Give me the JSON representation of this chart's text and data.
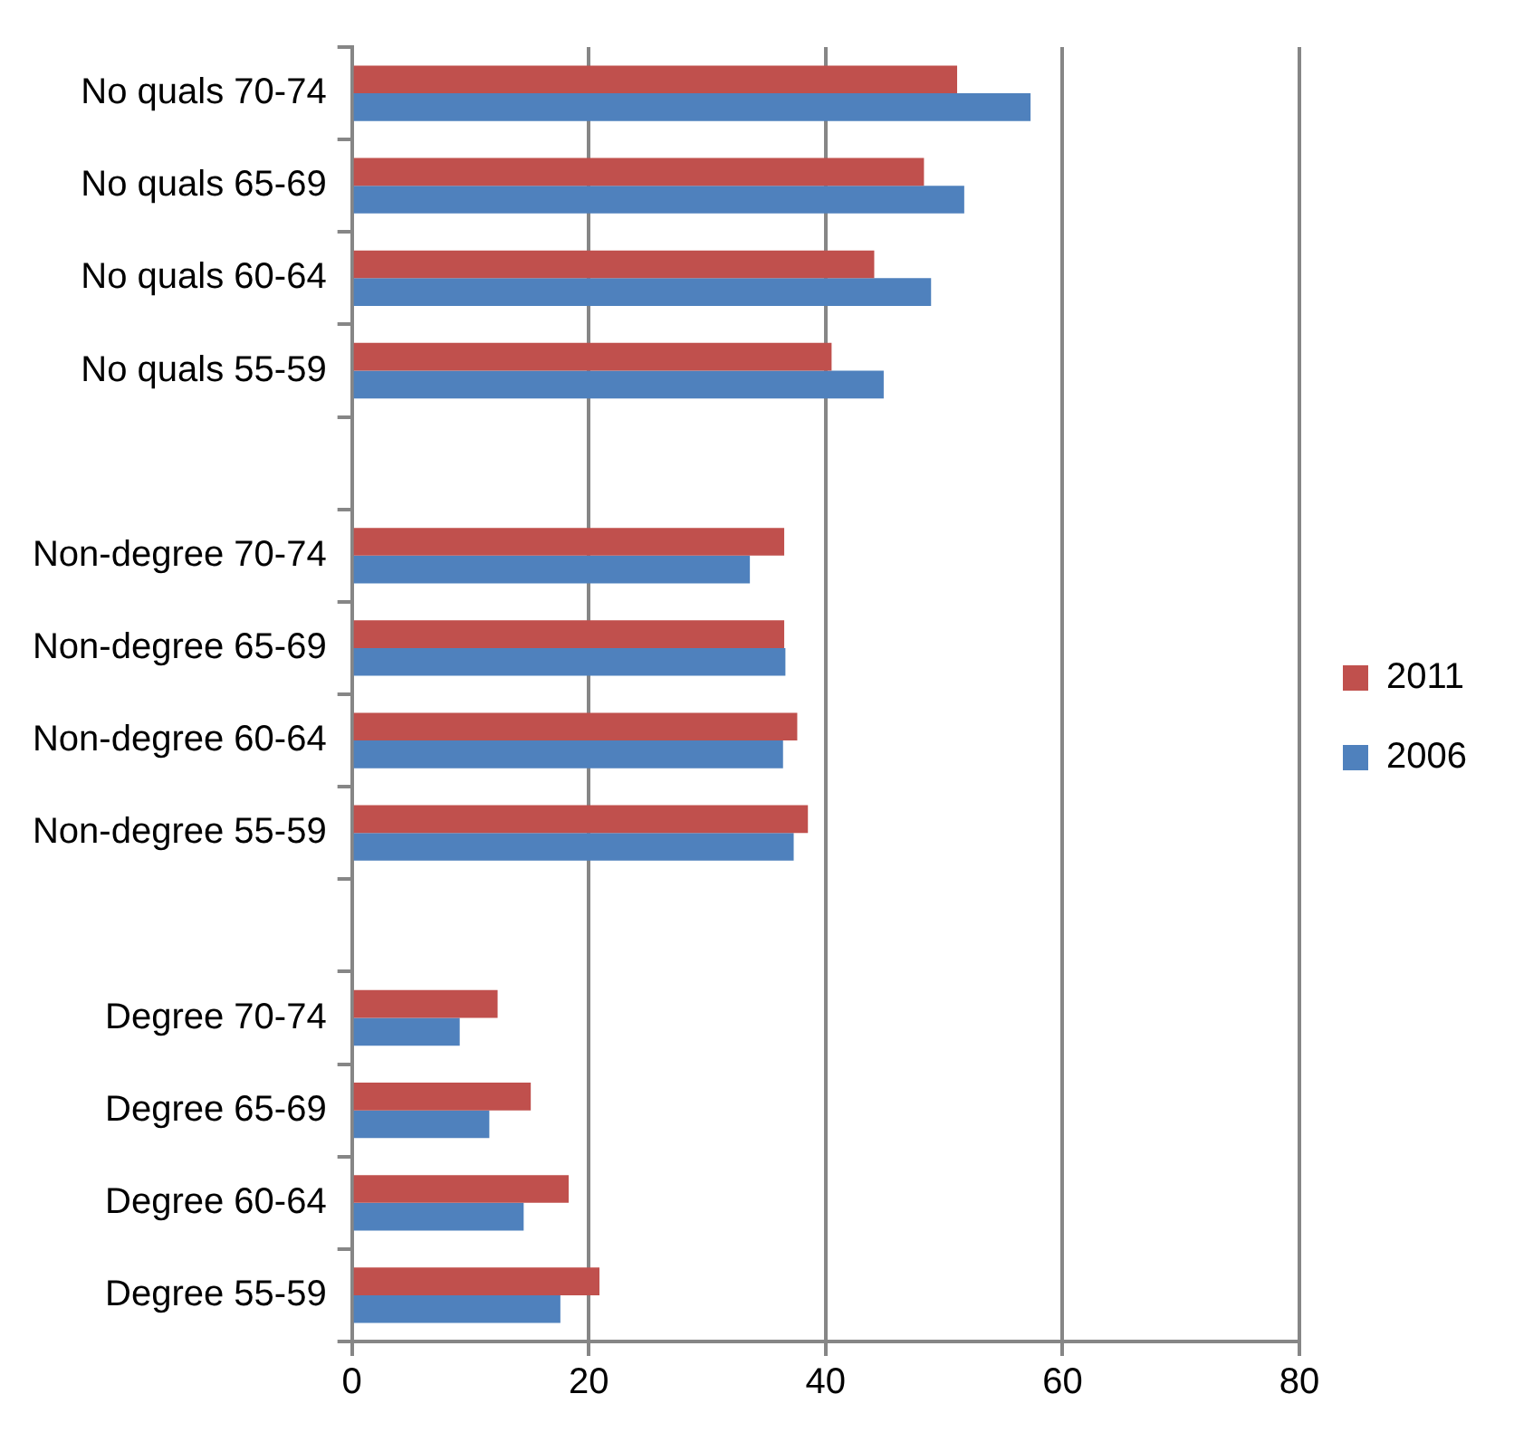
{
  "chart_data": {
    "type": "bar",
    "orientation": "horizontal",
    "categories": [
      "No quals 70-74",
      "No quals 65-69",
      "No quals 60-64",
      "No quals 55-59",
      null,
      "Non-degree 70-74",
      "Non-degree 65-69",
      "Non-degree 60-64",
      "Non-degree 55-59",
      null,
      "Degree 70-74",
      "Degree 65-69",
      "Degree 60-64",
      "Degree 55-59"
    ],
    "series": [
      {
        "name": "2011",
        "color": "#c0504d",
        "values": [
          51.1,
          48.3,
          44.1,
          40.5,
          null,
          36.5,
          36.5,
          37.6,
          38.5,
          null,
          12.3,
          15.1,
          18.3,
          20.9
        ]
      },
      {
        "name": "2006",
        "color": "#4f81bd",
        "values": [
          57.3,
          51.7,
          48.9,
          44.9,
          null,
          33.6,
          36.6,
          36.4,
          37.3,
          null,
          9.1,
          11.6,
          14.5,
          17.6
        ]
      }
    ],
    "xlim": [
      0,
      80
    ],
    "xticks": [
      0,
      20,
      40,
      60,
      80
    ],
    "grid": "x",
    "legend": "right"
  }
}
